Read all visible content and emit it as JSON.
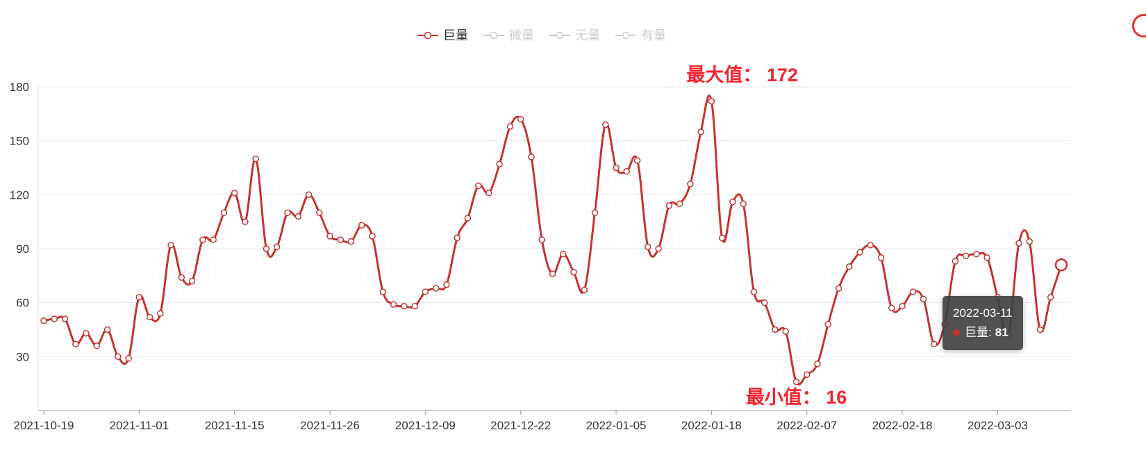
{
  "legend": {
    "items": [
      {
        "label": "巨量",
        "active": true
      },
      {
        "label": "微量",
        "active": false
      },
      {
        "label": "无量",
        "active": false
      },
      {
        "label": "有量",
        "active": false
      }
    ]
  },
  "tooltip": {
    "date": "2022-03-11",
    "series_label": "巨量:",
    "value": "81"
  },
  "annotations": {
    "max_label": "最大值： 172",
    "min_label": "最小值： 16"
  },
  "colors": {
    "series": "#c23531",
    "inactive": "#cccccc",
    "annotation": "#f5222d",
    "axis_label": "#333333",
    "grid_line": "#e6e6e6",
    "axis_line": "#999999",
    "y_axis_line": "#dddddd"
  },
  "chart_data": {
    "type": "line",
    "title": "",
    "series": [
      {
        "name": "巨量"
      },
      {
        "name": "微量"
      },
      {
        "name": "无量"
      },
      {
        "name": "有量"
      }
    ],
    "active_series": "巨量",
    "smooth": true,
    "grid": true,
    "legend_position": "top-center",
    "ylim": [
      0,
      180
    ],
    "y_ticks": [
      30,
      60,
      90,
      120,
      150,
      180
    ],
    "x_tick_indices": [
      0,
      9,
      18,
      27,
      36,
      45,
      54,
      63,
      72,
      81,
      90
    ],
    "x_tick_labels": [
      "2021-10-19",
      "2021-11-01",
      "2021-11-15",
      "2021-11-26",
      "2021-12-09",
      "2021-12-22",
      "2022-01-05",
      "2022-01-18",
      "2022-02-07",
      "2022-02-18",
      "2022-03-03"
    ],
    "x": [
      "2021-10-19",
      "2021-10-20",
      "2021-10-21",
      "2021-10-22",
      "2021-10-25",
      "2021-10-26",
      "2021-10-27",
      "2021-10-28",
      "2021-10-29",
      "2021-11-01",
      "2021-11-02",
      "2021-11-03",
      "2021-11-04",
      "2021-11-08",
      "2021-11-09",
      "2021-11-10",
      "2021-11-11",
      "2021-11-12",
      "2021-11-15",
      "2021-11-16",
      "2021-11-17",
      "2021-11-18",
      "2021-11-19",
      "2021-11-22",
      "2021-11-23",
      "2021-11-24",
      "2021-11-25",
      "2021-11-26",
      "2021-11-29",
      "2021-11-30",
      "2021-12-01",
      "2021-12-02",
      "2021-12-03",
      "2021-12-06",
      "2021-12-07",
      "2021-12-08",
      "2021-12-09",
      "2021-12-10",
      "2021-12-13",
      "2021-12-14",
      "2021-12-15",
      "2021-12-16",
      "2021-12-17",
      "2021-12-20",
      "2021-12-21",
      "2021-12-22",
      "2021-12-23",
      "2021-12-24",
      "2021-12-27",
      "2021-12-28",
      "2021-12-29",
      "2021-12-30",
      "2021-12-31",
      "2022-01-04",
      "2022-01-05",
      "2022-01-06",
      "2022-01-07",
      "2022-01-10",
      "2022-01-11",
      "2022-01-12",
      "2022-01-13",
      "2022-01-14",
      "2022-01-17",
      "2022-01-18",
      "2022-01-19",
      "2022-01-20",
      "2022-01-21",
      "2022-01-24",
      "2022-01-25",
      "2022-01-26",
      "2022-01-27",
      "2022-01-28",
      "2022-02-07",
      "2022-02-08",
      "2022-02-09",
      "2022-02-10",
      "2022-02-11",
      "2022-02-14",
      "2022-02-15",
      "2022-02-16",
      "2022-02-17",
      "2022-02-18",
      "2022-02-21",
      "2022-02-22",
      "2022-02-23",
      "2022-02-24",
      "2022-02-25",
      "2022-02-28",
      "2022-03-01",
      "2022-03-02",
      "2022-03-03",
      "2022-03-04",
      "2022-03-07",
      "2022-03-08",
      "2022-03-09",
      "2022-03-10",
      "2022-03-11"
    ],
    "values": [
      50,
      51,
      51,
      37,
      43,
      36,
      45,
      30,
      29,
      63,
      52,
      54,
      92,
      74,
      72,
      95,
      95,
      110,
      121,
      105,
      140,
      90,
      91,
      110,
      108,
      120,
      110,
      97,
      95,
      94,
      103,
      97,
      66,
      59,
      58,
      58,
      66,
      68,
      70,
      96,
      107,
      125,
      121,
      137,
      158,
      162,
      141,
      95,
      76,
      87,
      77,
      67,
      110,
      159,
      135,
      133,
      139,
      91,
      90,
      114,
      115,
      126,
      155,
      172,
      96,
      116,
      115,
      66,
      60,
      45,
      44,
      16,
      20,
      26,
      48,
      68,
      80,
      88,
      92,
      85,
      57,
      58,
      66,
      62,
      37,
      48,
      83,
      86,
      87,
      85,
      63,
      42,
      93,
      94,
      45,
      63,
      81
    ],
    "max_point": {
      "x": "2022-01-18",
      "value": 172
    },
    "min_point": {
      "x": "2022-01-28",
      "value": 16
    },
    "highlighted_point": {
      "x": "2022-03-11",
      "value": 81
    }
  }
}
